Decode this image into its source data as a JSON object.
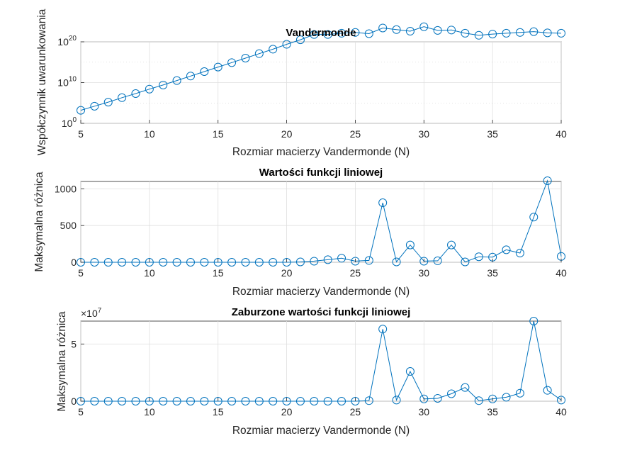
{
  "chart_data": [
    {
      "type": "line",
      "title": "Vandermonde",
      "xlabel": "Rozmiar macierzy Vandermonde (N)",
      "ylabel": "Współczynnik uwarunkowania",
      "yscale": "log",
      "xlim": [
        5,
        40
      ],
      "ylim_exponent": [
        0,
        20
      ],
      "x_ticks": [
        "5",
        "10",
        "15",
        "20",
        "25",
        "30",
        "35",
        "40"
      ],
      "y_ticks": [
        {
          "base": "10",
          "exp": "0"
        },
        {
          "base": "10",
          "exp": "10"
        },
        {
          "base": "10",
          "exp": "20"
        }
      ],
      "grid": true,
      "x": [
        5,
        6,
        7,
        8,
        9,
        10,
        11,
        12,
        13,
        14,
        15,
        16,
        17,
        18,
        19,
        20,
        21,
        22,
        23,
        24,
        25,
        26,
        27,
        28,
        29,
        30,
        31,
        32,
        33,
        34,
        35,
        36,
        37,
        38,
        39,
        40
      ],
      "log10_values": [
        3.2,
        4.2,
        5.2,
        6.3,
        7.3,
        8.4,
        9.4,
        10.5,
        11.6,
        12.7,
        13.8,
        14.9,
        16.0,
        17.1,
        18.2,
        19.4,
        20.5,
        21.8,
        21.8,
        22.1,
        22.3,
        22.0,
        23.4,
        23.0,
        22.6,
        23.7,
        22.8,
        22.9,
        22.1,
        21.6,
        21.9,
        22.1,
        22.3,
        22.5,
        22.2,
        22.1
      ]
    },
    {
      "type": "line",
      "title": "Wartości funkcji liniowej",
      "xlabel": "Rozmiar macierzy Vandermonde (N)",
      "ylabel": "Maksymalna różnica",
      "xlim": [
        5,
        40
      ],
      "ylim": [
        0,
        1100
      ],
      "x_ticks": [
        "5",
        "10",
        "15",
        "20",
        "25",
        "30",
        "35",
        "40"
      ],
      "y_ticks": [
        "0",
        "500",
        "1000"
      ],
      "grid": true,
      "x": [
        5,
        6,
        7,
        8,
        9,
        10,
        11,
        12,
        13,
        14,
        15,
        16,
        17,
        18,
        19,
        20,
        21,
        22,
        23,
        24,
        25,
        26,
        27,
        28,
        29,
        30,
        31,
        32,
        33,
        34,
        35,
        36,
        37,
        38,
        39,
        40
      ],
      "values": [
        0,
        0,
        0,
        0,
        0,
        0,
        0,
        0,
        0,
        0,
        0,
        0,
        0,
        0,
        0,
        0,
        5,
        15,
        35,
        55,
        15,
        25,
        810,
        5,
        235,
        15,
        20,
        235,
        5,
        75,
        70,
        170,
        125,
        615,
        1110,
        80
      ]
    },
    {
      "type": "line",
      "title": "Zaburzone wartości funkcji liniowej",
      "xlabel": "Rozmiar macierzy Vandermonde (N)",
      "ylabel": "Maksymalna różnica",
      "xlim": [
        5,
        40
      ],
      "ylim": [
        0,
        7
      ],
      "y_multiplier": {
        "base": "×10",
        "exp": "7"
      },
      "x_ticks": [
        "5",
        "10",
        "15",
        "20",
        "25",
        "30",
        "35",
        "40"
      ],
      "y_ticks": [
        "0",
        "5"
      ],
      "grid": true,
      "x": [
        5,
        6,
        7,
        8,
        9,
        10,
        11,
        12,
        13,
        14,
        15,
        16,
        17,
        18,
        19,
        20,
        21,
        22,
        23,
        24,
        25,
        26,
        27,
        28,
        29,
        30,
        31,
        32,
        33,
        34,
        35,
        36,
        37,
        38,
        39,
        40
      ],
      "values": [
        0,
        0,
        0,
        0,
        0,
        0,
        0,
        0,
        0,
        0,
        0,
        0,
        0,
        0,
        0,
        0,
        0,
        0,
        0,
        0,
        0,
        0.05,
        6.3,
        0.1,
        2.6,
        0.2,
        0.25,
        0.65,
        1.2,
        0.05,
        0.2,
        0.35,
        0.7,
        7.0,
        0.95,
        0.1
      ]
    }
  ],
  "colors": {
    "series": "#0072bd",
    "axis": "#262626",
    "grid": "#dfdfdf"
  }
}
